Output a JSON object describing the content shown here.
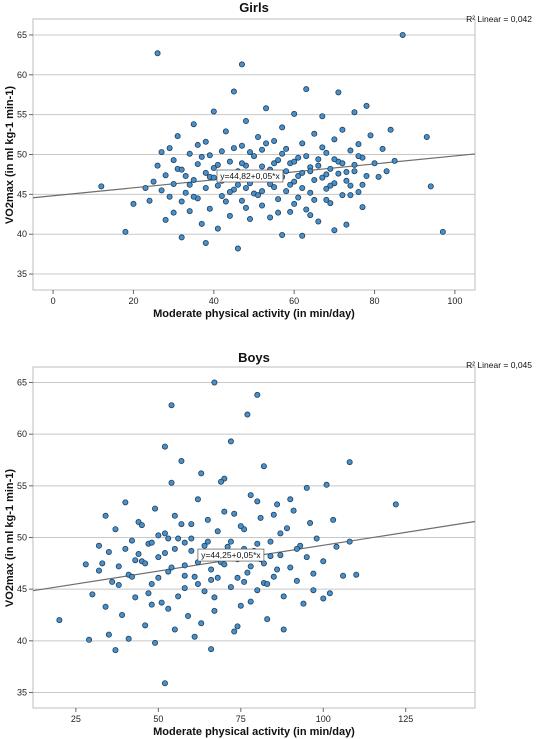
{
  "chart_data": [
    {
      "type": "scatter",
      "title": "Girls",
      "xlabel": "Moderate physical activity (in min/day)",
      "ylabel": "VO2max (in ml kg-1 min-1)",
      "xlim": [
        -5,
        105
      ],
      "ylim": [
        33,
        67
      ],
      "xticks": [
        0,
        20,
        40,
        60,
        80,
        100
      ],
      "yticks": [
        35,
        40,
        45,
        50,
        55,
        60,
        65
      ],
      "r2_text": "R² Linear = 0,042",
      "fit_label": "y=44,82+0,05*x",
      "fit": {
        "intercept": 44.82,
        "slope": 0.05
      },
      "fit_label_at": [
        49,
        47.3
      ],
      "grid": "horizontal",
      "marker_color": "#4a90c8",
      "line_color": "#6e6e6e",
      "points": [
        [
          12,
          46
        ],
        [
          18,
          40.3
        ],
        [
          26,
          62.7
        ],
        [
          47,
          61.3
        ],
        [
          87,
          65
        ],
        [
          93,
          52.2
        ],
        [
          94,
          46
        ],
        [
          97,
          40.3
        ],
        [
          20,
          43.8
        ],
        [
          23,
          45.8
        ],
        [
          24,
          44.2
        ],
        [
          25,
          46.6
        ],
        [
          26,
          48.6
        ],
        [
          27,
          50.3
        ],
        [
          27,
          45.5
        ],
        [
          28,
          41.8
        ],
        [
          28,
          47.4
        ],
        [
          29,
          44.7
        ],
        [
          29,
          50.8
        ],
        [
          30,
          46.3
        ],
        [
          30,
          42.7
        ],
        [
          31,
          48.2
        ],
        [
          31,
          52.3
        ],
        [
          32,
          44.1
        ],
        [
          32,
          39.6
        ],
        [
          33,
          47.3
        ],
        [
          33,
          45.2
        ],
        [
          34,
          50.1
        ],
        [
          34,
          42.9
        ],
        [
          35,
          53.8
        ],
        [
          35,
          46.8
        ],
        [
          36,
          48.8
        ],
        [
          36,
          44.5
        ],
        [
          37,
          41.3
        ],
        [
          37,
          49.7
        ],
        [
          38,
          45.8
        ],
        [
          38,
          51.6
        ],
        [
          39,
          47.2
        ],
        [
          39,
          43.2
        ],
        [
          40,
          55.4
        ],
        [
          40,
          48.3
        ],
        [
          41,
          46.1
        ],
        [
          41,
          40.7
        ],
        [
          42,
          50.4
        ],
        [
          42,
          44.8
        ],
        [
          43,
          47.7
        ],
        [
          43,
          52.9
        ],
        [
          44,
          42.3
        ],
        [
          44,
          49.1
        ],
        [
          45,
          45.6
        ],
        [
          45,
          57.9
        ],
        [
          46,
          47.9
        ],
        [
          46,
          38.2
        ],
        [
          47,
          51.1
        ],
        [
          47,
          44.2
        ],
        [
          48,
          48.6
        ],
        [
          48,
          54.2
        ],
        [
          49,
          46.4
        ],
        [
          49,
          41.9
        ],
        [
          50,
          49.8
        ],
        [
          50,
          45.1
        ],
        [
          51,
          52.2
        ],
        [
          51,
          47.5
        ],
        [
          52,
          43.6
        ],
        [
          52,
          50.6
        ],
        [
          53,
          46.9
        ],
        [
          53,
          55.8
        ],
        [
          54,
          48.1
        ],
        [
          54,
          42.1
        ],
        [
          55,
          51.7
        ],
        [
          55,
          45.9
        ],
        [
          56,
          49.3
        ],
        [
          56,
          44.4
        ],
        [
          57,
          47.2
        ],
        [
          57,
          53.4
        ],
        [
          58,
          45.4
        ],
        [
          58,
          50.7
        ],
        [
          59,
          48.9
        ],
        [
          59,
          42.8
        ],
        [
          60,
          46.6
        ],
        [
          60,
          55.1
        ],
        [
          61,
          49.6
        ],
        [
          61,
          44.6
        ],
        [
          62,
          51.4
        ],
        [
          62,
          47.7
        ],
        [
          63,
          43.1
        ],
        [
          63,
          58.2
        ],
        [
          64,
          48.4
        ],
        [
          64,
          45.2
        ],
        [
          65,
          52.6
        ],
        [
          65,
          46.8
        ],
        [
          66,
          49.4
        ],
        [
          66,
          41.6
        ],
        [
          67,
          47.1
        ],
        [
          67,
          54.8
        ],
        [
          68,
          45.7
        ],
        [
          68,
          50.2
        ],
        [
          69,
          48.2
        ],
        [
          69,
          43.9
        ],
        [
          70,
          51.9
        ],
        [
          70,
          46.4
        ],
        [
          71,
          49.1
        ],
        [
          71,
          57.8
        ],
        [
          72,
          44.9
        ],
        [
          72,
          53.1
        ],
        [
          73,
          47.8
        ],
        [
          73,
          41.2
        ],
        [
          74,
          50.5
        ],
        [
          74,
          46.1
        ],
        [
          75,
          48.7
        ],
        [
          75,
          55.3
        ],
        [
          76,
          45.3
        ],
        [
          76,
          51.3
        ],
        [
          77,
          49.6
        ],
        [
          77,
          43.4
        ],
        [
          78,
          47.3
        ],
        [
          78,
          56.1
        ],
        [
          79,
          52.4
        ],
        [
          80,
          48.9
        ],
        [
          81,
          47.2
        ],
        [
          82,
          50.7
        ],
        [
          83,
          47.9
        ],
        [
          84,
          53.1
        ],
        [
          85,
          49.2
        ],
        [
          30,
          49.3
        ],
        [
          32,
          48.1
        ],
        [
          34,
          46.2
        ],
        [
          35,
          44.7
        ],
        [
          36,
          51.2
        ],
        [
          38,
          47.7
        ],
        [
          39,
          49.9
        ],
        [
          41,
          48.7
        ],
        [
          42,
          46.7
        ],
        [
          43,
          44.1
        ],
        [
          44,
          47.1
        ],
        [
          45,
          50.8
        ],
        [
          46,
          46.2
        ],
        [
          47,
          48.9
        ],
        [
          48,
          45.8
        ],
        [
          49,
          50.3
        ],
        [
          50,
          47.6
        ],
        [
          51,
          44.9
        ],
        [
          52,
          48.5
        ],
        [
          53,
          51.4
        ],
        [
          54,
          46.3
        ],
        [
          55,
          48.9
        ],
        [
          56,
          47.4
        ],
        [
          57,
          50.1
        ],
        [
          58,
          47.9
        ],
        [
          59,
          46.2
        ],
        [
          60,
          49.1
        ],
        [
          61,
          47.3
        ],
        [
          62,
          45.8
        ],
        [
          63,
          49.8
        ],
        [
          64,
          47.9
        ],
        [
          65,
          44.3
        ],
        [
          66,
          48.6
        ],
        [
          67,
          50.9
        ],
        [
          68,
          47.5
        ],
        [
          69,
          46.1
        ],
        [
          70,
          49.4
        ],
        [
          71,
          47.6
        ],
        [
          72,
          48.9
        ],
        [
          73,
          46.7
        ],
        [
          74,
          44.9
        ],
        [
          75,
          47.9
        ],
        [
          76,
          49.8
        ],
        [
          77,
          46.2
        ],
        [
          40,
          47.1
        ],
        [
          44,
          45.3
        ],
        [
          48,
          43.3
        ],
        [
          52,
          45.4
        ],
        [
          56,
          42.7
        ],
        [
          60,
          43.8
        ],
        [
          64,
          42.4
        ],
        [
          68,
          44.3
        ],
        [
          57,
          39.9
        ],
        [
          38,
          38.9
        ],
        [
          62,
          39.8
        ],
        [
          70,
          40.5
        ]
      ]
    },
    {
      "type": "scatter",
      "title": "Boys",
      "xlabel": "Moderate physical activity (in min/day)",
      "ylabel": "VO2max (in ml kg-1 min-1)",
      "xlim": [
        12,
        146
      ],
      "ylim": [
        33.5,
        66.5
      ],
      "xticks": [
        25,
        50,
        75,
        100,
        125
      ],
      "yticks": [
        35,
        40,
        45,
        50,
        55,
        60,
        65
      ],
      "r2_text": "R² Linear = 0,045",
      "fit_label": "y=44,25+0,05*x",
      "fit_label_at": [
        72,
        48.3
      ],
      "fit": {
        "intercept": 44.25,
        "slope": 0.05
      },
      "grid": "horizontal",
      "marker_color": "#4a90c8",
      "line_color": "#6e6e6e",
      "points": [
        [
          20,
          42
        ],
        [
          28,
          47.4
        ],
        [
          29,
          40.1
        ],
        [
          32,
          49.2
        ],
        [
          34,
          52.1
        ],
        [
          37,
          39.1
        ],
        [
          52,
          35.9
        ],
        [
          54,
          62.8
        ],
        [
          67,
          65
        ],
        [
          77,
          61.9
        ],
        [
          80,
          63.8
        ],
        [
          122,
          53.2
        ],
        [
          110,
          46.4
        ],
        [
          108,
          57.3
        ],
        [
          52,
          58.8
        ],
        [
          72,
          59.3
        ],
        [
          30,
          44.5
        ],
        [
          32,
          46.8
        ],
        [
          34,
          43.3
        ],
        [
          35,
          48.6
        ],
        [
          36,
          45.7
        ],
        [
          37,
          50.8
        ],
        [
          38,
          47.2
        ],
        [
          39,
          42.5
        ],
        [
          40,
          53.4
        ],
        [
          41,
          46.4
        ],
        [
          42,
          49.7
        ],
        [
          43,
          44.2
        ],
        [
          44,
          51.5
        ],
        [
          45,
          47.7
        ],
        [
          46,
          41.5
        ],
        [
          47,
          49.4
        ],
        [
          48,
          45.5
        ],
        [
          49,
          52.8
        ],
        [
          50,
          48.1
        ],
        [
          51,
          43.7
        ],
        [
          52,
          50.4
        ],
        [
          53,
          46.7
        ],
        [
          54,
          55.3
        ],
        [
          55,
          48.9
        ],
        [
          56,
          44.3
        ],
        [
          57,
          51.3
        ],
        [
          58,
          47.3
        ],
        [
          59,
          42.4
        ],
        [
          60,
          49.9
        ],
        [
          61,
          46.2
        ],
        [
          62,
          53.7
        ],
        [
          63,
          48.4
        ],
        [
          64,
          44.8
        ],
        [
          65,
          51.7
        ],
        [
          66,
          46.9
        ],
        [
          67,
          42.9
        ],
        [
          68,
          50.6
        ],
        [
          69,
          47.6
        ],
        [
          70,
          55.7
        ],
        [
          71,
          49.1
        ],
        [
          72,
          45.2
        ],
        [
          73,
          52.3
        ],
        [
          74,
          47.9
        ],
        [
          75,
          43.4
        ],
        [
          76,
          50.8
        ],
        [
          77,
          46.6
        ],
        [
          78,
          54.1
        ],
        [
          79,
          48.7
        ],
        [
          80,
          44.9
        ],
        [
          81,
          51.9
        ],
        [
          82,
          47.5
        ],
        [
          83,
          42.1
        ],
        [
          84,
          49.6
        ],
        [
          85,
          46.2
        ],
        [
          86,
          53.2
        ],
        [
          87,
          48.3
        ],
        [
          88,
          44.3
        ],
        [
          89,
          50.9
        ],
        [
          90,
          47.1
        ],
        [
          91,
          52.6
        ],
        [
          92,
          45.8
        ],
        [
          93,
          49.2
        ],
        [
          94,
          43.6
        ],
        [
          95,
          48.1
        ],
        [
          96,
          51.4
        ],
        [
          97,
          46.5
        ],
        [
          98,
          49.9
        ],
        [
          100,
          47.7
        ],
        [
          101,
          55.1
        ],
        [
          102,
          44.6
        ],
        [
          104,
          49.1
        ],
        [
          106,
          46.3
        ],
        [
          40,
          48.9
        ],
        [
          42,
          46.2
        ],
        [
          44,
          48.4
        ],
        [
          46,
          47.5
        ],
        [
          48,
          49.5
        ],
        [
          50,
          46.1
        ],
        [
          52,
          48.5
        ],
        [
          54,
          47.1
        ],
        [
          56,
          49.9
        ],
        [
          58,
          46.3
        ],
        [
          60,
          48.7
        ],
        [
          62,
          47.6
        ],
        [
          64,
          49.2
        ],
        [
          66,
          45.9
        ],
        [
          68,
          48.1
        ],
        [
          70,
          47.4
        ],
        [
          72,
          49.6
        ],
        [
          74,
          46.1
        ],
        [
          76,
          48.9
        ],
        [
          78,
          47.2
        ],
        [
          80,
          49.4
        ],
        [
          82,
          45.6
        ],
        [
          84,
          48.2
        ],
        [
          86,
          46.9
        ],
        [
          45,
          51.2
        ],
        [
          50,
          50.2
        ],
        [
          55,
          52.1
        ],
        [
          60,
          51.3
        ],
        [
          65,
          49.6
        ],
        [
          70,
          52.5
        ],
        [
          75,
          51.1
        ],
        [
          80,
          53.5
        ],
        [
          47,
          44.6
        ],
        [
          53,
          43.1
        ],
        [
          58,
          45.1
        ],
        [
          63,
          41.7
        ],
        [
          67,
          44.2
        ],
        [
          73,
          40.9
        ],
        [
          78,
          43.8
        ],
        [
          83,
          45.5
        ],
        [
          35,
          40.6
        ],
        [
          41,
          40.2
        ],
        [
          49,
          39.8
        ],
        [
          55,
          41.1
        ],
        [
          61,
          40.4
        ],
        [
          66,
          39.2
        ],
        [
          74,
          41.4
        ],
        [
          88,
          41.1
        ],
        [
          57,
          57.4
        ],
        [
          63,
          56.2
        ],
        [
          69,
          55.4
        ],
        [
          82,
          56.9
        ],
        [
          85,
          52.2
        ],
        [
          90,
          53.7
        ],
        [
          95,
          54.8
        ],
        [
          100,
          44.1
        ],
        [
          33,
          47.5
        ],
        [
          38,
          45.4
        ],
        [
          43,
          47.8
        ],
        [
          48,
          43.5
        ],
        [
          53,
          49.9
        ],
        [
          58,
          49.5
        ],
        [
          62,
          45.5
        ],
        [
          68,
          46.1
        ],
        [
          71,
          48.4
        ],
        [
          76,
          45.7
        ],
        [
          81,
          47.9
        ],
        [
          87,
          50.4
        ],
        [
          92,
          48.9
        ],
        [
          97,
          44.9
        ],
        [
          103,
          51.7
        ],
        [
          108,
          49.6
        ]
      ]
    }
  ]
}
